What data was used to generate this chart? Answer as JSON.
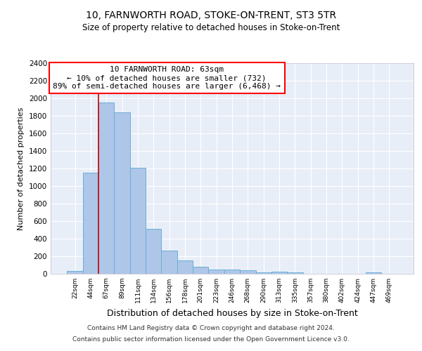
{
  "title": "10, FARNWORTH ROAD, STOKE-ON-TRENT, ST3 5TR",
  "subtitle": "Size of property relative to detached houses in Stoke-on-Trent",
  "xlabel": "Distribution of detached houses by size in Stoke-on-Trent",
  "ylabel": "Number of detached properties",
  "categories": [
    "22sqm",
    "44sqm",
    "67sqm",
    "89sqm",
    "111sqm",
    "134sqm",
    "156sqm",
    "178sqm",
    "201sqm",
    "223sqm",
    "246sqm",
    "268sqm",
    "290sqm",
    "313sqm",
    "335sqm",
    "357sqm",
    "380sqm",
    "402sqm",
    "424sqm",
    "447sqm",
    "469sqm"
  ],
  "values": [
    30,
    1150,
    1950,
    1840,
    1210,
    510,
    265,
    155,
    80,
    50,
    45,
    40,
    20,
    25,
    15,
    0,
    0,
    0,
    0,
    20,
    0
  ],
  "bar_color": "#aec6e8",
  "bar_edge_color": "#6baed6",
  "background_color": "#e8eef8",
  "grid_color": "#ffffff",
  "vline_color": "#cc0000",
  "annotation_text": "10 FARNWORTH ROAD: 63sqm\n← 10% of detached houses are smaller (732)\n89% of semi-detached houses are larger (6,468) →",
  "ylim": [
    0,
    2400
  ],
  "yticks": [
    0,
    200,
    400,
    600,
    800,
    1000,
    1200,
    1400,
    1600,
    1800,
    2000,
    2200,
    2400
  ],
  "footer_line1": "Contains HM Land Registry data © Crown copyright and database right 2024.",
  "footer_line2": "Contains public sector information licensed under the Open Government Licence v3.0.",
  "vline_index": 2
}
